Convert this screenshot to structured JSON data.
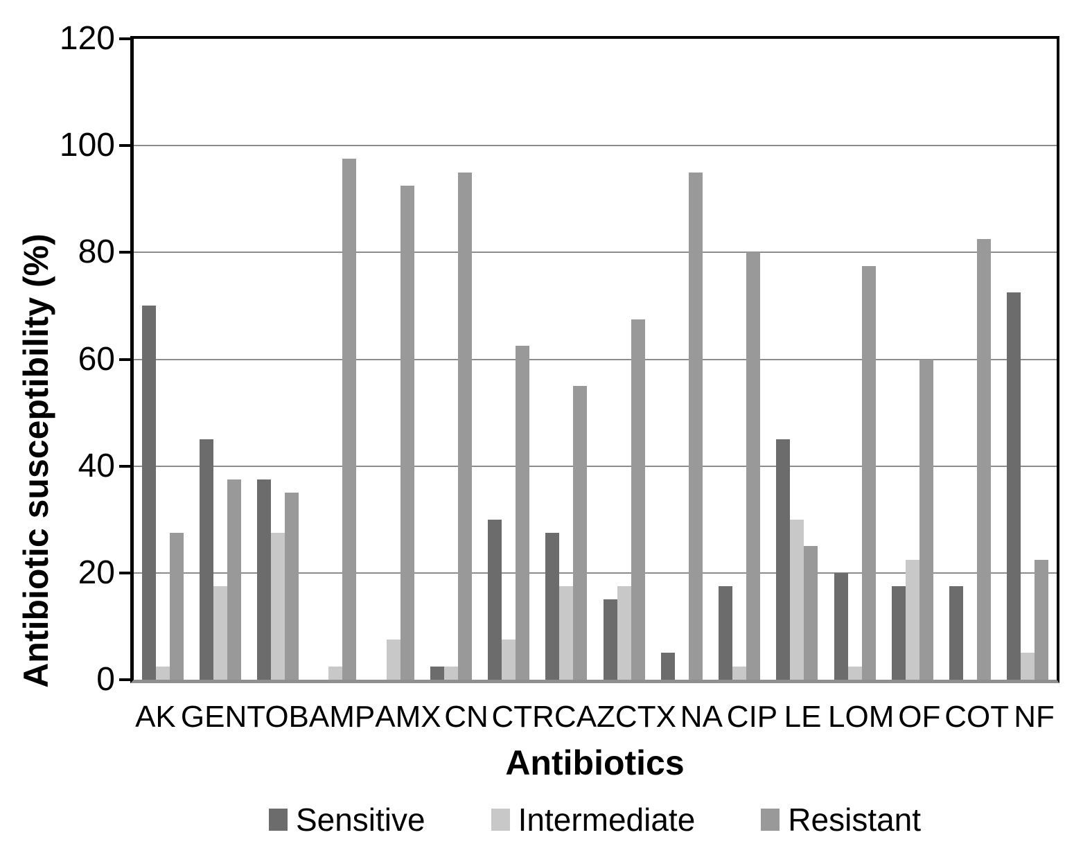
{
  "chart_data": {
    "type": "bar",
    "title": "",
    "xlabel": "Antibiotics",
    "ylabel": "Antibiotic susceptibility (%)",
    "ylim": [
      0,
      120
    ],
    "yticks": [
      0,
      20,
      40,
      60,
      80,
      100,
      120
    ],
    "grid": true,
    "legend_position": "bottom",
    "categories": [
      "AK",
      "GEN",
      "TOB",
      "AMP",
      "AMX",
      "CN",
      "CTR",
      "CAZ",
      "CTX",
      "NA",
      "CIP",
      "LE",
      "LOM",
      "OF",
      "COT",
      "NF"
    ],
    "series": [
      {
        "name": "Sensitive",
        "color": "#6c6c6c",
        "values": [
          70,
          45,
          37.5,
          0,
          0,
          2.5,
          30,
          27.5,
          15,
          5,
          17.5,
          45,
          20,
          17.5,
          17.5,
          72.5
        ]
      },
      {
        "name": "Intermediate",
        "color": "#c8c8c8",
        "values": [
          2.5,
          17.5,
          27.5,
          2.5,
          7.5,
          2.5,
          7.5,
          17.5,
          17.5,
          0,
          2.5,
          30,
          2.5,
          22.5,
          0,
          5
        ]
      },
      {
        "name": "Resistant",
        "color": "#999999",
        "values": [
          27.5,
          37.5,
          35,
          97.5,
          92.5,
          95,
          62.5,
          55,
          67.5,
          95,
          80,
          25,
          77.5,
          60,
          82.5,
          22.5
        ]
      }
    ]
  },
  "frame": {
    "axis_color": "#000000",
    "gridline_color": "#8c8c8c",
    "baseline_color": "#8f8f8f",
    "background": "#ffffff"
  }
}
